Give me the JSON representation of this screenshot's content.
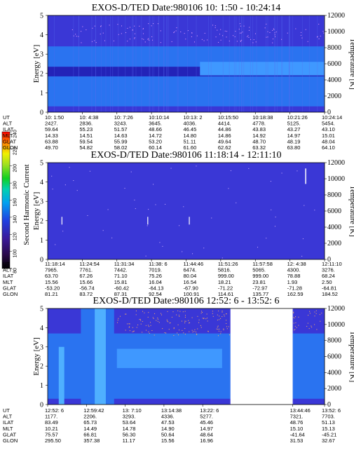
{
  "colorbar": {
    "label": "Second Harmonic Current",
    "ticks": [
      "240",
      "220",
      "200",
      "180",
      "160",
      "140",
      "120",
      "100",
      "80"
    ]
  },
  "row_labels": [
    "UT",
    "ALT",
    "ILAT",
    "MLT",
    "GLAT",
    "GLON"
  ],
  "colors": {
    "background": "#3a37d6",
    "mid_band": "#2a73f0",
    "bright_band": "#3f98ff",
    "dark_band": "#2323b8",
    "gap": "#ffffff"
  },
  "chart_data": [
    {
      "type": "heatmap",
      "title": "EXOS-D/TED   Date:980106  10: 1:50 - 10:24:14",
      "ylabel": "Energy [eV]",
      "y2label": "Temperature [K]",
      "ylim": [
        0,
        5
      ],
      "y2lim": [
        0,
        12000
      ],
      "yticks": [
        "0",
        "1",
        "2",
        "3",
        "4",
        "5"
      ],
      "y2ticks": [
        "0",
        "2000",
        "4000",
        "6000",
        "8000",
        "10000",
        "12000"
      ],
      "gaps": [],
      "columns": [
        [
          "10: 1:50",
          "2427.",
          "59.64",
          "14.33",
          "63.88",
          "49.70"
        ],
        [
          "10: 4:38",
          "2836.",
          "55.23",
          "14.51",
          "59.54",
          "54.82"
        ],
        [
          "10: 7:26",
          "3243.",
          "51.57",
          "14.63",
          "55.99",
          "58.02"
        ],
        [
          "10:10:14",
          "3645.",
          "48.66",
          "14.72",
          "53.20",
          "60.14"
        ],
        [
          "10:13: 2",
          "4036.",
          "46.45",
          "14.80",
          "51.11",
          "61.60"
        ],
        [
          "10:15:50",
          "4414.",
          "44.86",
          "14.86",
          "49.64",
          "62.62"
        ],
        [
          "10:18:38",
          "4778.",
          "43.83",
          "14.92",
          "48.70",
          "63.32"
        ],
        [
          "10:21:26",
          "5125.",
          "43.27",
          "14.97",
          "48.19",
          "63.80"
        ],
        [
          "10:24:14",
          "5454.",
          "43.10",
          "15.01",
          "48.04",
          "64.10"
        ]
      ]
    },
    {
      "type": "heatmap",
      "title": "EXOS-D/TED   Date:980106  11:18:14 - 12:11:10",
      "ylabel": "Energy [eV]",
      "y2label": "Temperature [K]",
      "ylim": [
        0,
        5
      ],
      "y2lim": [
        0,
        12000
      ],
      "yticks": [
        "0",
        "1",
        "2",
        "3",
        "4",
        "5"
      ],
      "y2ticks": [
        "0",
        "2000",
        "4000",
        "6000",
        "8000",
        "10000",
        "12000"
      ],
      "gaps": [],
      "columns": [
        [
          "11:18:14",
          "7965.",
          "63.70",
          "15.56",
          "-53.20",
          "81.21"
        ],
        [
          "11:24:54",
          "7761.",
          "67.26",
          "15.66",
          "-56.74",
          "83.72"
        ],
        [
          "11:31:34",
          "7442.",
          "71.10",
          "15.81",
          "-60.42",
          "87.31"
        ],
        [
          "11:38: 6",
          "7019.",
          "75.26",
          "16.04",
          "-64.13",
          "92.54"
        ],
        [
          "11:44:46",
          "6474.",
          "80.04",
          "16.54",
          "-67.90",
          "100.91"
        ],
        [
          "11:51:26",
          "5816.",
          "999.00",
          "18.21",
          "-71.22",
          "114.61"
        ],
        [
          "11:57:58",
          "5065.",
          "999.00",
          "23.81",
          "-72.97",
          "135.77"
        ],
        [
          "12: 4:38",
          "4300.",
          "78.88",
          "1.93",
          "-71.28",
          "162.59"
        ],
        [
          "12:11:10",
          "3276.",
          "68.24",
          "2.50",
          "-64.81",
          "184.52"
        ]
      ]
    },
    {
      "type": "heatmap",
      "title": "EXOS-D/TED   Date:980106  12:52: 6 - 13:52: 6",
      "ylabel": "Energy [eV]",
      "y2label": "Temperature [K]",
      "ylim": [
        0,
        5
      ],
      "y2lim": [
        0,
        12000
      ],
      "yticks": [
        "0",
        "1",
        "2",
        "3",
        "4",
        "5"
      ],
      "y2ticks": [
        "0",
        "2000",
        "4000",
        "6000",
        "8000",
        "10000",
        "12000"
      ],
      "gaps": [
        [
          0.66,
          0.885
        ]
      ],
      "columns": [
        [
          "12:52: 6",
          "1177.",
          "83.49",
          "10.21",
          "75.57",
          "295.50"
        ],
        [
          "12:59:42",
          "2206.",
          "65.73",
          "14.49",
          "66.81",
          "357.38"
        ],
        [
          "13: 7:10",
          "3293.",
          "53.64",
          "14.78",
          "56.30",
          "11.17"
        ],
        [
          "13:14:38",
          "4336.",
          "47.53",
          "14.90",
          "50.64",
          "15.56"
        ],
        [
          "13:22: 6",
          "5277.",
          "45.46",
          "14.97",
          "48.64",
          "16.96"
        ],
        [
          "13:44:46",
          "7321.",
          "48.76",
          "15.10",
          "-41.64",
          "31.53"
        ],
        [
          "13:52: 6",
          "7703.",
          "51.13",
          "15.13",
          "-45.21",
          "32.67"
        ]
      ]
    }
  ]
}
